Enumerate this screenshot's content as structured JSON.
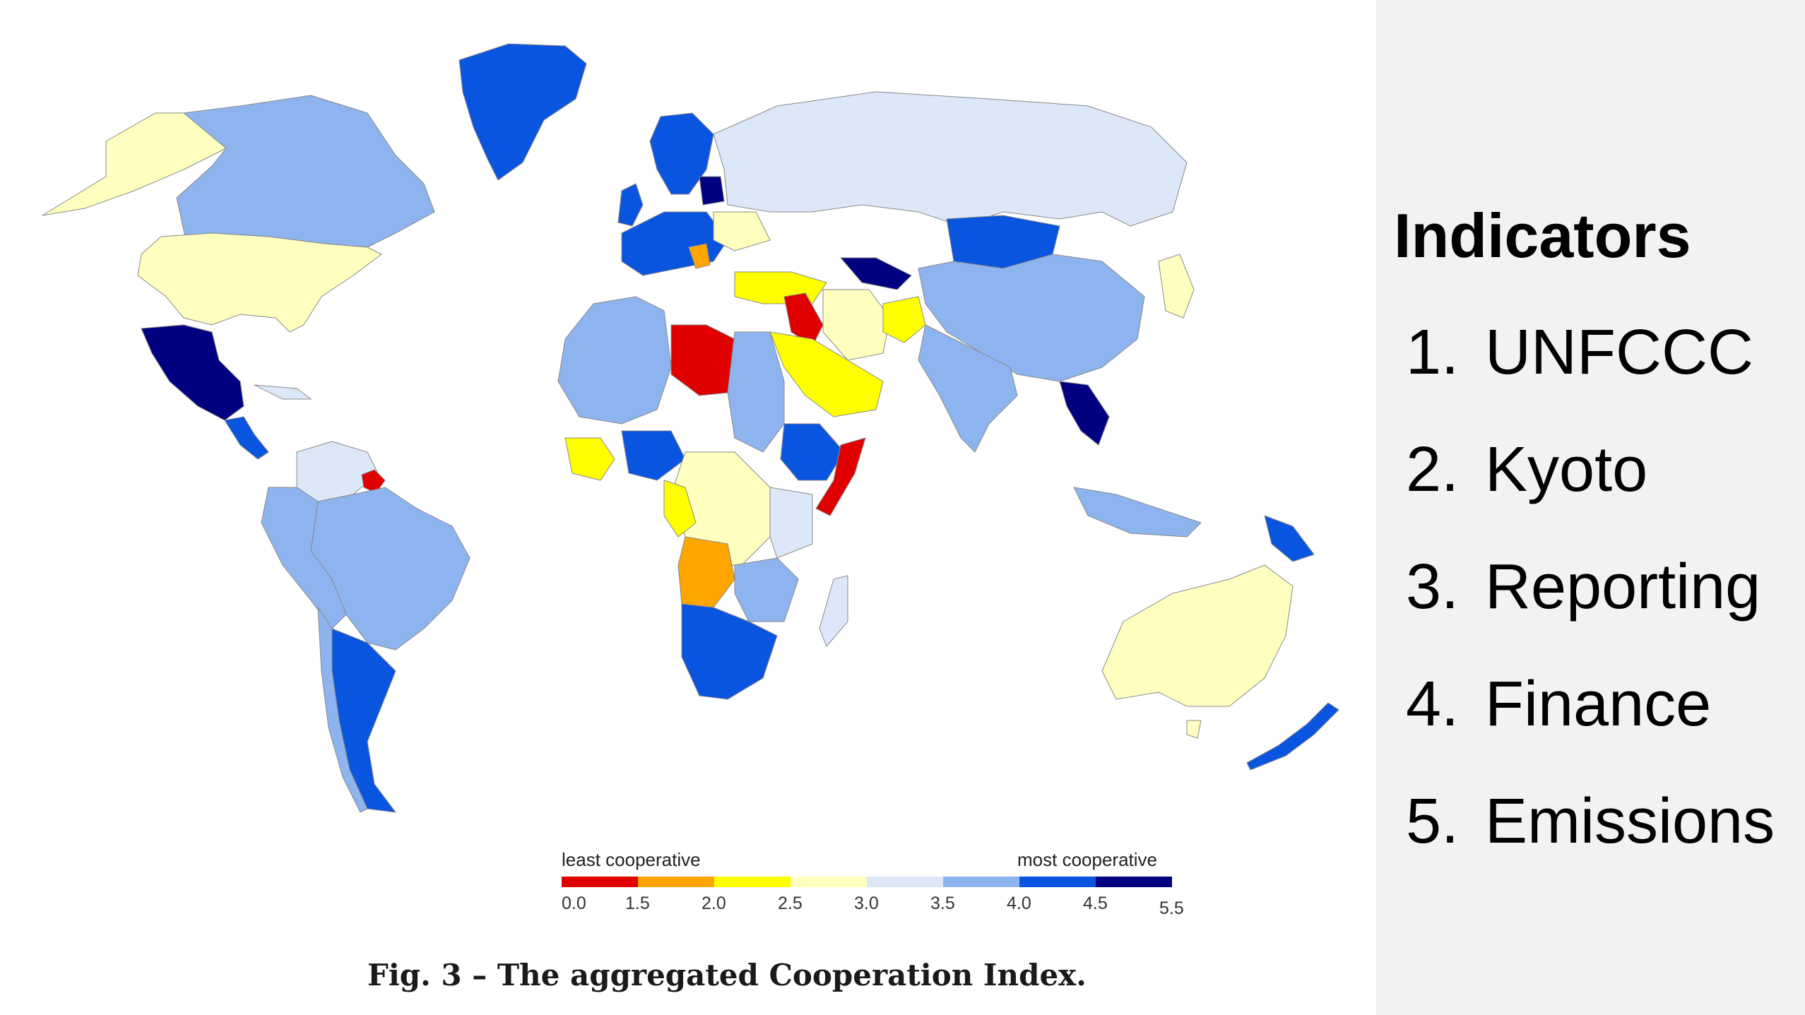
{
  "legend": {
    "low_label": "least cooperative",
    "high_label": "most cooperative",
    "ticks": [
      "0.0",
      "1.5",
      "2.0",
      "2.5",
      "3.0",
      "3.5",
      "4.0",
      "4.5",
      "5.5"
    ],
    "colors": [
      "#e00000",
      "#ffa500",
      "#ffff00",
      "#ffffc0",
      "#dce8f8",
      "#8eb4f0",
      "#0a55e0",
      "#000080"
    ]
  },
  "caption": "Fig. 3 – The aggregated Cooperation Index.",
  "panel": {
    "title": "Indicators",
    "items": [
      {
        "num": "1.",
        "label": "UNFCCC"
      },
      {
        "num": "2.",
        "label": "Kyoto"
      },
      {
        "num": "3.",
        "label": "Reporting"
      },
      {
        "num": "4.",
        "label": "Finance"
      },
      {
        "num": "5.",
        "label": "Emissions"
      }
    ]
  }
}
